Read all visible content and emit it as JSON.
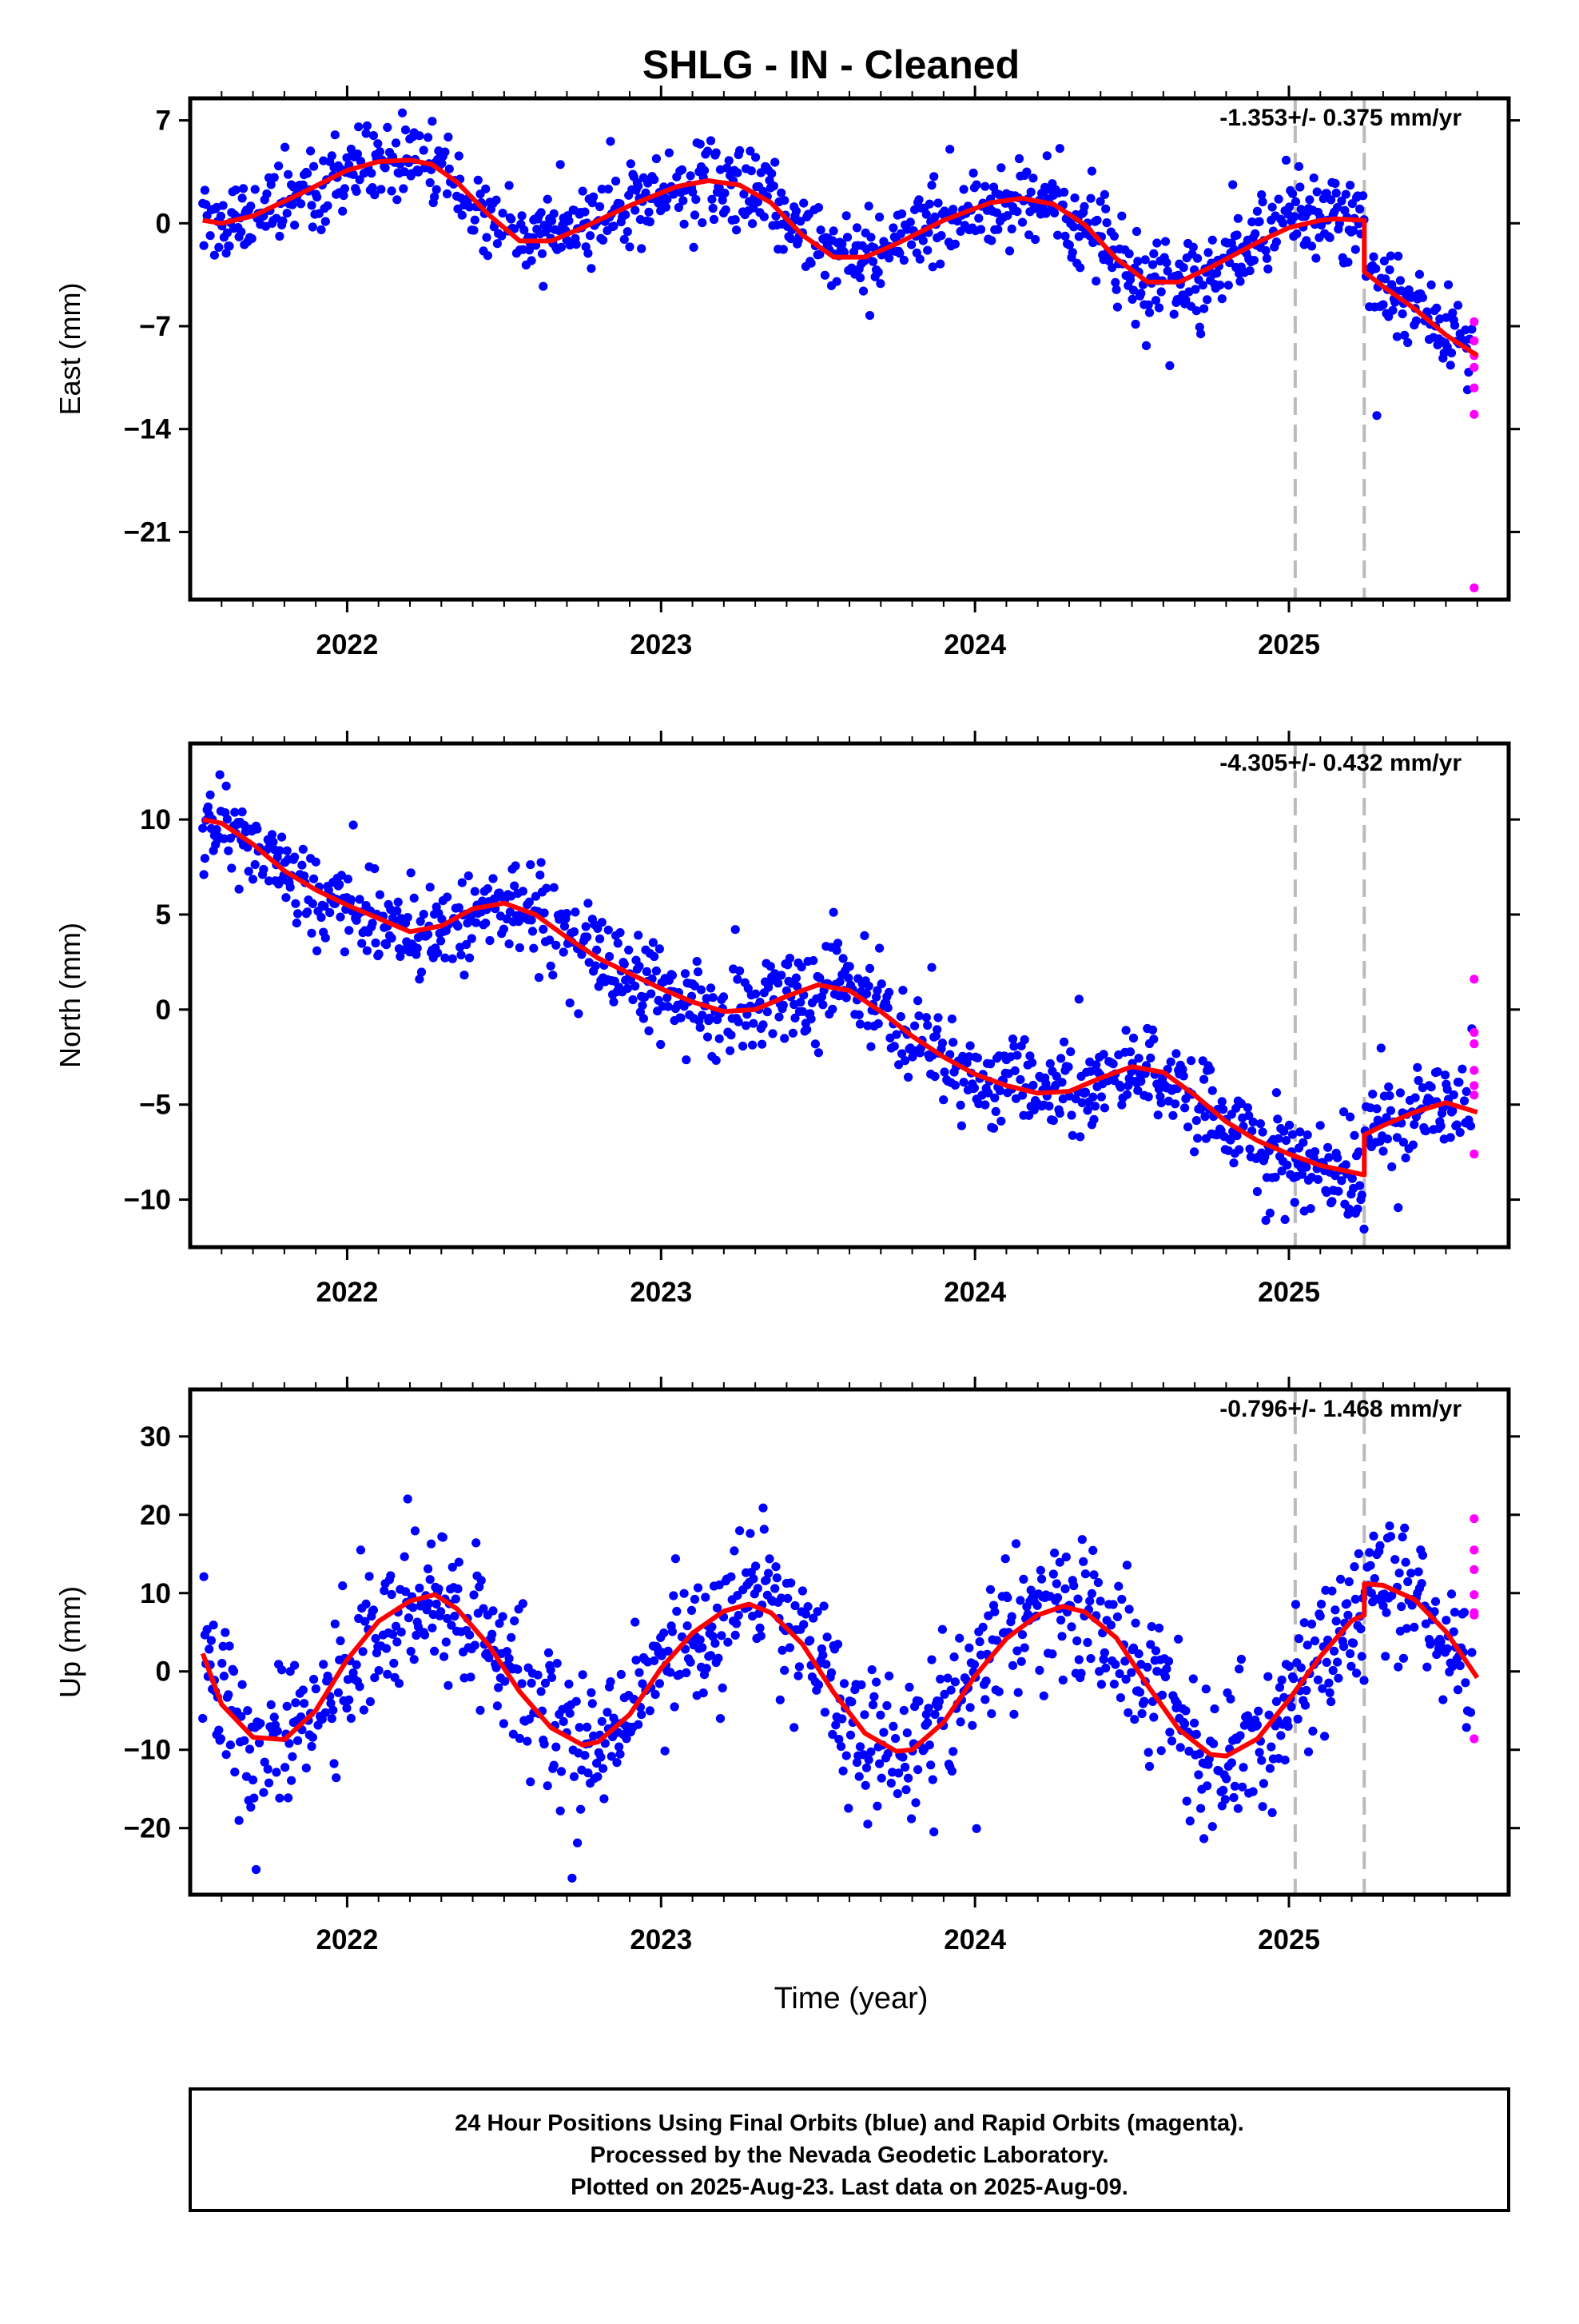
{
  "title": "SHLG  - IN - Cleaned",
  "x_axis": {
    "label": "Time (year)",
    "range": [
      2021.5,
      2025.7
    ],
    "major_ticks": [
      2022,
      2023,
      2024,
      2025
    ],
    "major_labels": [
      "2022",
      "2023",
      "2024",
      "2025"
    ],
    "minor_step": 0.1
  },
  "offset_markers": [
    2025.02,
    2025.24
  ],
  "colors": {
    "final_orbits": "#0000ff",
    "rapid_orbits": "#ff00ff",
    "model": "#ff0000",
    "marker": "#bbbbbb"
  },
  "footer": {
    "line1": "24 Hour Positions Using Final Orbits (blue) and Rapid Orbits (magenta).",
    "line2": "Processed by the Nevada Geodetic Laboratory.",
    "line3": "Plotted on 2025-Aug-23. Last data on 2025-Aug-09."
  },
  "chart_data": [
    {
      "type": "scatter",
      "component": "east",
      "ylabel": "East (mm)",
      "rate": "-1.353+/- 0.375 mm/yr",
      "ylim": [
        -25.6,
        8.5
      ],
      "yticks": [
        7,
        0,
        -7,
        -14,
        -21
      ],
      "ytick_labels": [
        "7",
        "0",
        "−7",
        "−14",
        "−21"
      ],
      "model_x": [
        2021.54,
        2021.6,
        2021.7,
        2021.85,
        2022.0,
        2022.1,
        2022.2,
        2022.27,
        2022.35,
        2022.45,
        2022.55,
        2022.65,
        2022.75,
        2022.9,
        2023.05,
        2023.15,
        2023.25,
        2023.35,
        2023.45,
        2023.55,
        2023.65,
        2023.75,
        2023.9,
        2024.05,
        2024.15,
        2024.25,
        2024.35,
        2024.45,
        2024.55,
        2024.65,
        2024.75,
        2024.9,
        2025.0,
        2025.1,
        2025.15,
        2025.24,
        2025.24,
        2025.3,
        2025.4,
        2025.5,
        2025.6
      ],
      "model_y": [
        0.2,
        0.0,
        0.5,
        2.0,
        3.6,
        4.2,
        4.3,
        4.0,
        2.8,
        0.6,
        -1.2,
        -1.2,
        -0.3,
        1.2,
        2.5,
        2.9,
        2.6,
        1.4,
        -0.8,
        -2.3,
        -2.3,
        -1.4,
        0.2,
        1.4,
        1.7,
        1.3,
        -0.1,
        -2.4,
        -4.0,
        -4.0,
        -3.0,
        -1.3,
        -0.3,
        0.2,
        0.3,
        0.2,
        -3.3,
        -4.3,
        -5.8,
        -7.6,
        -9.0
      ],
      "rapid_x": [
        2025.59,
        2025.59,
        2025.59,
        2025.59,
        2025.59,
        2025.59,
        2025.59
      ],
      "rapid_y": [
        -6.7,
        -8.0,
        -9.0,
        -9.8,
        -11.2,
        -13.0,
        -24.8
      ]
    },
    {
      "type": "scatter",
      "component": "north",
      "ylabel": "North (mm)",
      "rate": "-4.305+/- 0.432 mm/yr",
      "ylim": [
        -12.5,
        14.0
      ],
      "yticks": [
        10,
        5,
        0,
        -5,
        -10
      ],
      "ytick_labels": [
        "10",
        "5",
        "0",
        "−5",
        "−10"
      ],
      "model_x": [
        2021.54,
        2021.6,
        2021.7,
        2021.8,
        2021.9,
        2022.0,
        2022.1,
        2022.2,
        2022.3,
        2022.4,
        2022.5,
        2022.6,
        2022.7,
        2022.8,
        2022.9,
        2023.0,
        2023.1,
        2023.2,
        2023.3,
        2023.4,
        2023.5,
        2023.6,
        2023.7,
        2023.8,
        2023.9,
        2024.0,
        2024.1,
        2024.2,
        2024.3,
        2024.4,
        2024.5,
        2024.6,
        2024.7,
        2024.8,
        2024.9,
        2025.0,
        2025.1,
        2025.24,
        2025.24,
        2025.3,
        2025.4,
        2025.5,
        2025.6
      ],
      "model_y": [
        10.0,
        9.8,
        8.7,
        7.3,
        6.3,
        5.5,
        4.8,
        4.1,
        4.4,
        5.3,
        5.6,
        5.0,
        3.8,
        2.7,
        1.9,
        1.1,
        0.4,
        -0.1,
        0.0,
        0.7,
        1.3,
        1.0,
        -0.1,
        -1.4,
        -2.5,
        -3.4,
        -4.0,
        -4.4,
        -4.3,
        -3.6,
        -3.0,
        -3.3,
        -4.5,
        -5.9,
        -6.9,
        -7.6,
        -8.2,
        -8.7,
        -6.6,
        -6.1,
        -5.4,
        -4.9,
        -5.4
      ],
      "rapid_x": [
        2025.59,
        2025.59,
        2025.59,
        2025.59,
        2025.59,
        2025.59,
        2025.59
      ],
      "rapid_y": [
        1.6,
        -1.2,
        -1.8,
        -3.2,
        -4.0,
        -4.5,
        -7.6
      ]
    },
    {
      "type": "scatter",
      "component": "up",
      "ylabel": "Up (mm)",
      "rate": "-0.796+/- 1.468 mm/yr",
      "ylim": [
        -28.5,
        36.0
      ],
      "yticks": [
        30,
        20,
        10,
        0,
        -10,
        -20
      ],
      "ytick_labels": [
        "30",
        "20",
        "10",
        "0",
        "−10",
        "−20"
      ],
      "model_x": [
        2021.54,
        2021.6,
        2021.7,
        2021.8,
        2021.9,
        2022.0,
        2022.1,
        2022.2,
        2022.28,
        2022.35,
        2022.45,
        2022.55,
        2022.65,
        2022.75,
        2022.8,
        2022.9,
        2023.0,
        2023.1,
        2023.2,
        2023.28,
        2023.35,
        2023.45,
        2023.55,
        2023.65,
        2023.75,
        2023.8,
        2023.9,
        2024.0,
        2024.1,
        2024.2,
        2024.28,
        2024.35,
        2024.45,
        2024.55,
        2024.65,
        2024.75,
        2024.8,
        2024.9,
        2025.0,
        2025.1,
        2025.2,
        2025.24,
        2025.24,
        2025.3,
        2025.4,
        2025.5,
        2025.6
      ],
      "model_y": [
        2.3,
        -4.2,
        -8.4,
        -8.7,
        -5.0,
        1.5,
        6.4,
        9.0,
        9.8,
        8.0,
        3.4,
        -2.6,
        -7.2,
        -9.4,
        -9.0,
        -5.5,
        0.4,
        4.9,
        7.7,
        8.6,
        7.5,
        3.5,
        -2.7,
        -7.9,
        -10.2,
        -10.0,
        -6.5,
        -0.6,
        4.2,
        7.2,
        8.3,
        7.6,
        4.3,
        -1.8,
        -7.4,
        -10.6,
        -10.8,
        -8.6,
        -3.6,
        1.9,
        6.5,
        7.2,
        11.2,
        11.0,
        9.2,
        5.1,
        -0.8
      ],
      "rapid_x": [
        2025.59,
        2025.59,
        2025.59,
        2025.59,
        2025.59,
        2025.59,
        2025.59
      ],
      "rapid_y": [
        19.5,
        15.5,
        13.0,
        9.8,
        7.2,
        7.5,
        -8.6
      ]
    }
  ]
}
